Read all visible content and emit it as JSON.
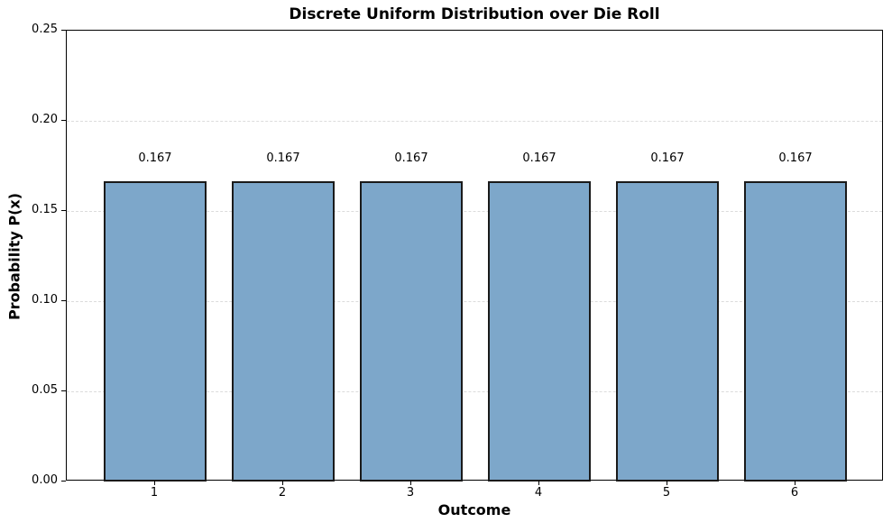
{
  "chart_data": {
    "type": "bar",
    "title": "Discrete Uniform Distribution over Die Roll",
    "xlabel": "Outcome",
    "ylabel": "Probability P(x)",
    "categories": [
      "1",
      "2",
      "3",
      "4",
      "5",
      "6"
    ],
    "values": [
      0.1667,
      0.1667,
      0.1667,
      0.1667,
      0.1667,
      0.1667
    ],
    "bar_labels": [
      "0.167",
      "0.167",
      "0.167",
      "0.167",
      "0.167",
      "0.167"
    ],
    "ylim": [
      0,
      0.25
    ],
    "yticks": [
      "0.00",
      "0.05",
      "0.10",
      "0.15",
      "0.20",
      "0.25"
    ],
    "grid": "horizontal-dashed",
    "legend": "none",
    "colors": {
      "bar_fill": "#7da7ca",
      "bar_edge": "#1a1a1a",
      "grid": "#dcdcdc",
      "spine": "#000000",
      "text": "#000000",
      "background": "#ffffff"
    }
  }
}
